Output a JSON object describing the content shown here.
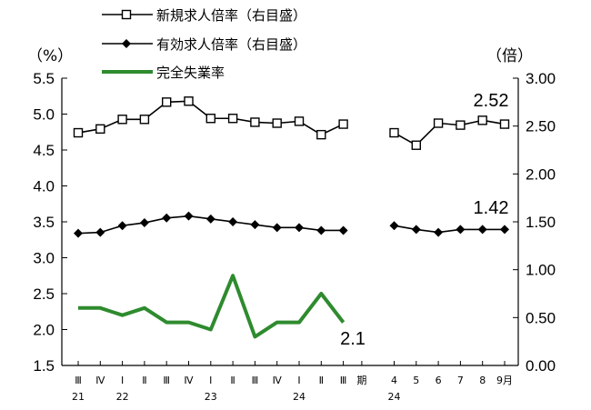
{
  "chart_data": {
    "type": "line",
    "left_axis_unit": "（%）",
    "right_axis_unit": "（倍）",
    "left_ylim": [
      1.5,
      5.5
    ],
    "left_yticks": [
      "1.5",
      "2.0",
      "2.5",
      "3.0",
      "3.5",
      "4.0",
      "4.5",
      "5.0",
      "5.5"
    ],
    "right_ylim": [
      0,
      3
    ],
    "right_yticks": [
      "0.00",
      "0.50",
      "1.00",
      "1.50",
      "2.00",
      "2.50",
      "3.00"
    ],
    "x_row1": [
      "Ⅲ",
      "Ⅳ",
      "Ⅰ",
      "Ⅱ",
      "Ⅲ",
      "Ⅳ",
      "Ⅰ",
      "Ⅱ",
      "Ⅲ",
      "Ⅳ",
      "Ⅰ",
      "Ⅱ",
      "Ⅲ",
      "期",
      "4",
      "5",
      "6",
      "7",
      "8",
      "9月"
    ],
    "x_row2": [
      "21",
      "",
      "22",
      "",
      "",
      "",
      "23",
      "",
      "",
      "",
      "24",
      "",
      "",
      "",
      "24",
      "",
      "",
      "",
      "",
      ""
    ],
    "grid": false,
    "legend_position": "top-left",
    "series": [
      {
        "name": "新規求人倍率（右目盛）",
        "axis": "right",
        "color": "#000000",
        "marker": "square-open",
        "segments": [
          [
            2.43,
            2.47,
            2.57,
            2.57,
            2.75,
            2.76,
            2.58,
            2.58,
            2.54,
            2.53,
            2.55,
            2.41,
            2.52
          ],
          [
            2.43,
            2.3,
            2.53,
            2.51,
            2.56,
            2.52
          ]
        ],
        "end_label": "2.52"
      },
      {
        "name": "有効求人倍率（右目盛）",
        "axis": "right",
        "color": "#000000",
        "marker": "diamond-filled",
        "segments": [
          [
            1.38,
            1.39,
            1.46,
            1.49,
            1.54,
            1.56,
            1.53,
            1.5,
            1.47,
            1.44,
            1.44,
            1.41,
            1.41
          ],
          [
            1.46,
            1.42,
            1.39,
            1.42,
            1.42,
            1.42
          ]
        ],
        "end_label": "1.42"
      },
      {
        "name": "完全失業率",
        "axis": "left",
        "color": "#2e8b2e",
        "marker": "none",
        "segments": [
          [
            2.3,
            2.3,
            2.2,
            2.3,
            2.1,
            2.1,
            2.0,
            2.75,
            1.9,
            2.1,
            2.1,
            2.5,
            2.1
          ]
        ],
        "end_label": "2.1"
      }
    ]
  }
}
